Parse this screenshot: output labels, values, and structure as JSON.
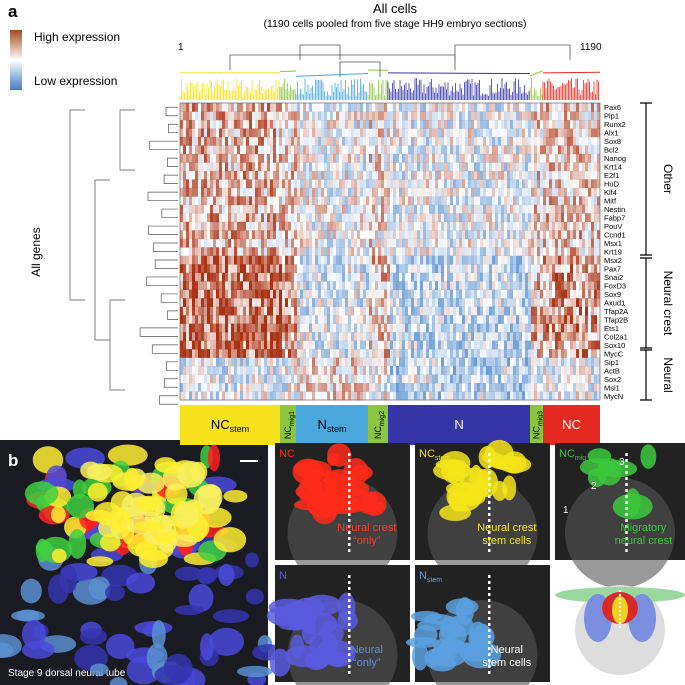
{
  "panel_a": {
    "label": "a",
    "title": "All cells",
    "subtitle": "(1190 cells pooled from five stage HH9 embryo sections)",
    "start": "1",
    "end": "1190",
    "legend_high": "High expression",
    "legend_low": "Low expression",
    "y_label": "All genes",
    "genes": [
      "Pax6",
      "Plp1",
      "Runx2",
      "Alx1",
      "Sox8",
      "Bcl2",
      "Nanog",
      "Krt14",
      "E2f1",
      "HuD",
      "Klf4",
      "Mitf",
      "Nestin",
      "Fabp7",
      "PouV",
      "Ccnd1",
      "Msx1",
      "Krt19",
      "Msx2",
      "Pax7",
      "Snai2",
      "FoxD3",
      "Sox9",
      "Axud1",
      "Tfap2A",
      "Tfap2B",
      "Ets1",
      "Col2a1",
      "Sox10",
      "MycC",
      "Sip1",
      "ActB",
      "Sox2",
      "Msi1",
      "MycN"
    ],
    "groups": [
      "Other",
      "Neural crest",
      "Neural"
    ],
    "clusters": [
      {
        "base": "NC",
        "sub": "stem"
      },
      {
        "base": "NC",
        "sub": "mig1"
      },
      {
        "base": "N",
        "sub": "stem"
      },
      {
        "base": "NC",
        "sub": "mig2"
      },
      {
        "base": "N"
      },
      {
        "base": "NC",
        "sub": "mig3"
      },
      {
        "base": "NC"
      }
    ]
  },
  "panel_b": {
    "label": "b",
    "main_caption": "Stage 9 dorsal neural tube",
    "panels": [
      {
        "base": "NC",
        "caption": [
          "Neural crest",
          "“only”"
        ]
      },
      {
        "base": "NC",
        "sub": "stem",
        "caption": [
          "Neural crest",
          "stem cells"
        ]
      },
      {
        "base": "NC",
        "sub": "mig",
        "caption": [
          "Migratory",
          "neural crest"
        ],
        "markers": [
          "1",
          "2",
          "3"
        ]
      },
      {
        "base": "N",
        "caption": [
          "Neural",
          "“only”"
        ]
      },
      {
        "base": "N",
        "sub": "stem",
        "caption": [
          "Neural",
          "stem cells"
        ]
      }
    ]
  }
}
